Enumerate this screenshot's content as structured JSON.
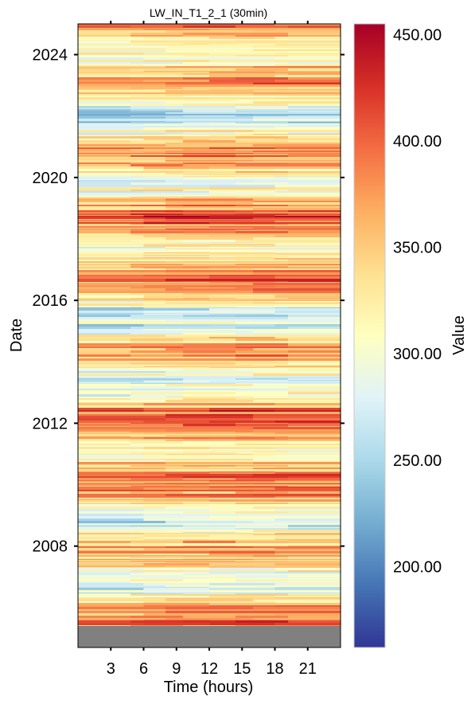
{
  "chart_data": {
    "type": "heatmap",
    "title": "LW_IN_T1_2_1 (30min)",
    "xlabel": "Time (hours)",
    "ylabel": "Date",
    "colorbar_label": "Value",
    "x_ticks": [
      3,
      6,
      9,
      12,
      15,
      18,
      21
    ],
    "x_tick_labels": [
      "3",
      "6",
      "9",
      "12",
      "15",
      "18",
      "21"
    ],
    "xlim": [
      0,
      24
    ],
    "y_ticks": [
      2008,
      2012,
      2016,
      2020,
      2024
    ],
    "y_tick_labels": [
      "2008",
      "2012",
      "2016",
      "2020",
      "2024"
    ],
    "ylim": [
      2004.7,
      2025.0
    ],
    "data_start": 2005.4,
    "colorbar_ticks": [
      200,
      250,
      300,
      350,
      400,
      450
    ],
    "colorbar_tick_labels": [
      "200.00",
      "250.00",
      "300.00",
      "350.00",
      "400.00",
      "450.00"
    ],
    "clim": [
      162,
      455
    ],
    "colormap": [
      "#313695",
      "#4575b4",
      "#74add1",
      "#abd9e9",
      "#e0f3f8",
      "#ffffbf",
      "#fee090",
      "#fdae61",
      "#f46d43",
      "#d73027",
      "#a50026"
    ],
    "missing_color": "#808080",
    "typical_range": [
      240,
      420
    ]
  }
}
